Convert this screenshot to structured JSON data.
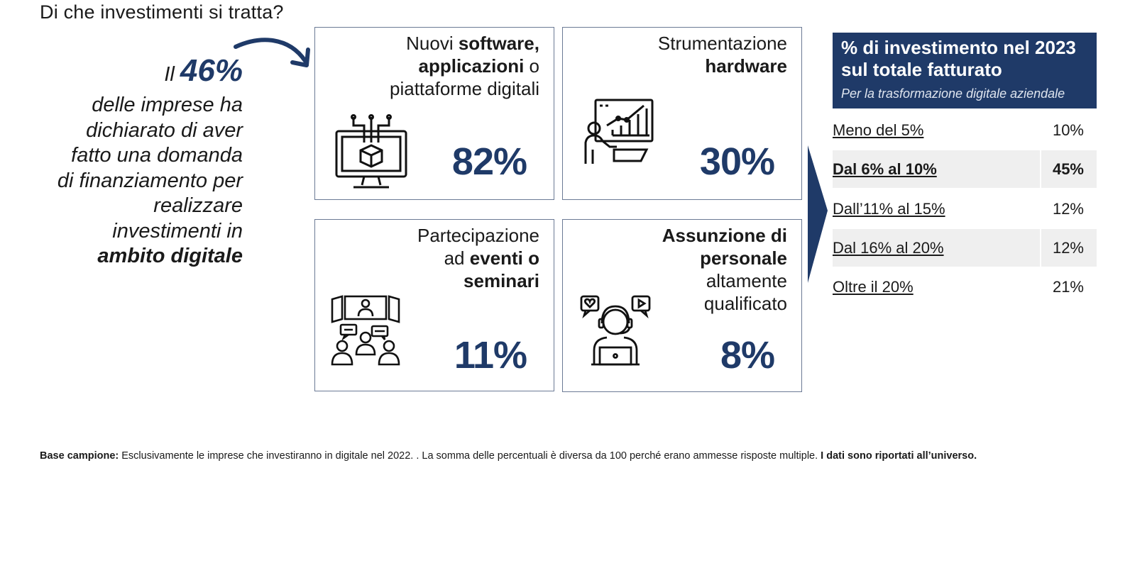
{
  "title": "Di che investimenti si tratta?",
  "left": {
    "prefix": "Il",
    "value": "46%",
    "line1": "delle imprese ha",
    "line2": "dichiarato di aver",
    "line3": "fatto una domanda",
    "line4": "di finanziamento per",
    "line5": "realizzare",
    "line6": "investimenti in",
    "line7": "ambito digitale"
  },
  "cards": {
    "software": {
      "l1a": "Nuovi ",
      "l1b": "software,",
      "l2a": "applicazioni",
      "l2b": " o",
      "l3": "piattaforme digitali",
      "pct": "82%",
      "icon": "monitor-cube-icon"
    },
    "hardware": {
      "l1": "Strumentazione",
      "l2": "hardware",
      "pct": "30%",
      "icon": "presentation-chart-icon"
    },
    "events": {
      "l1": "Partecipazione",
      "l2a": "ad ",
      "l2b": "eventi o",
      "l3": "seminari",
      "pct": "11%",
      "icon": "webinar-audience-icon"
    },
    "staff": {
      "l1": "Assunzione di",
      "l2": "personale",
      "l3": "altamente",
      "l4": "qualificato",
      "pct": "8%",
      "icon": "person-laptop-icon"
    }
  },
  "table": {
    "title_line1": "% di investimento nel 2023",
    "title_line2": "sul totale fatturato",
    "subtitle": "Per la trasformazione digitale aziendale",
    "rows": [
      {
        "label": "Meno del 5%",
        "value": "10%"
      },
      {
        "label": "Dal 6% al 10%",
        "value": "45%"
      },
      {
        "label": "Dall’11% al 15%",
        "value": "12%"
      },
      {
        "label": "Dal 16% al 20%",
        "value": "12%"
      },
      {
        "label": "Oltre il 20%",
        "value": "21%"
      }
    ]
  },
  "footer": {
    "bold_label": "Base campione:",
    "text": "Esclusivamente le imprese che investiranno in digitale nel 2022. . La somma delle percentuali è diversa da 100 perché erano ammesse risposte multiple.",
    "bold_end": "I dati sono riportati all’universo."
  },
  "colors": {
    "accent": "#1f3a68",
    "border": "#6b7a95",
    "shade": "#efefef"
  }
}
